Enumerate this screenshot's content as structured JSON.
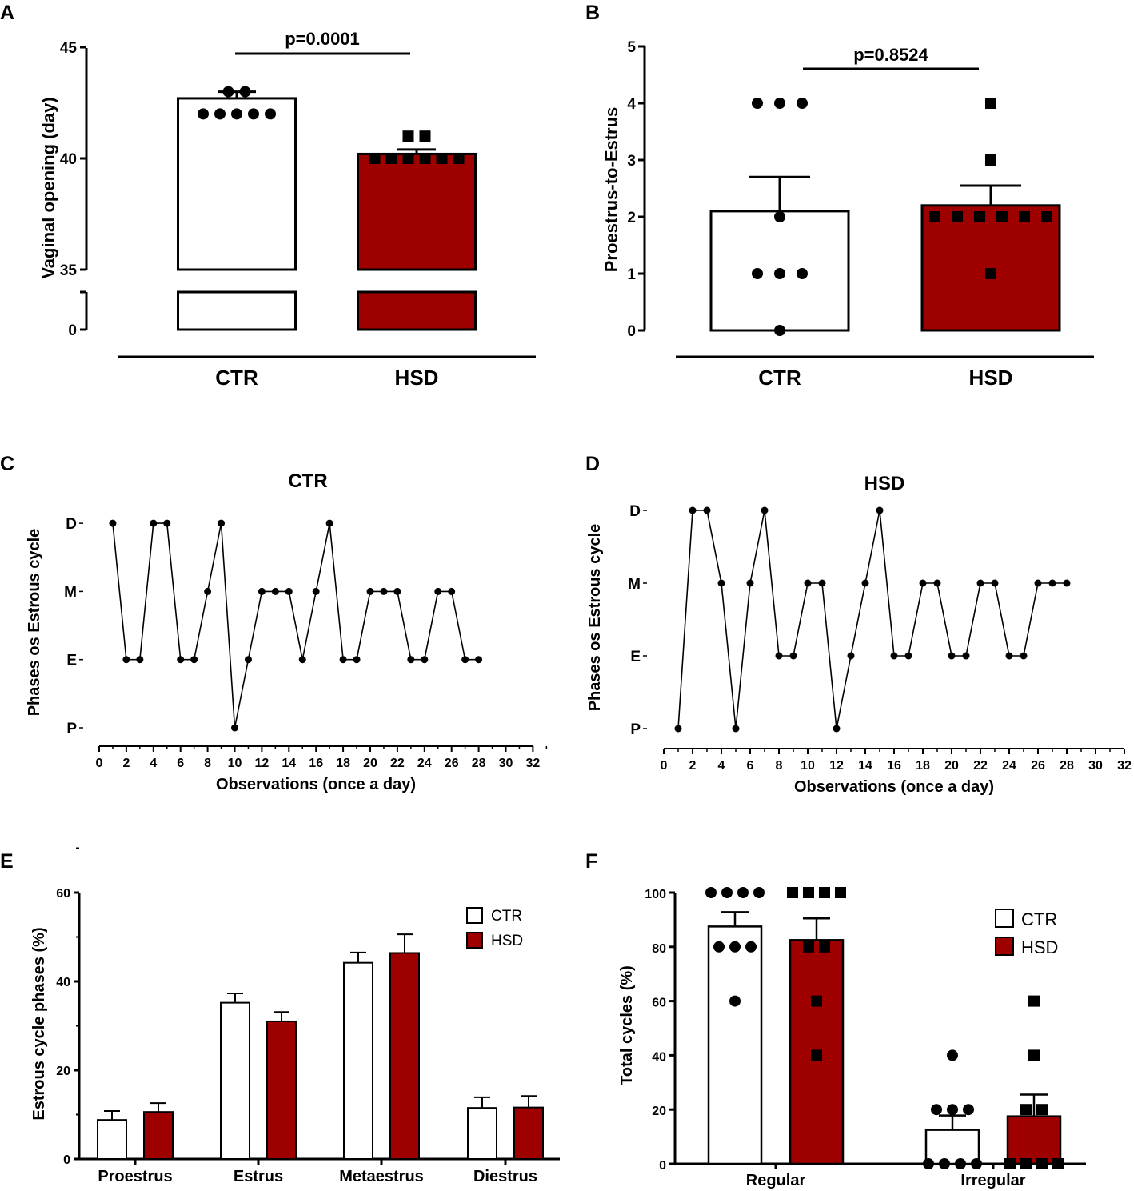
{
  "colors": {
    "ctr": "#ffffff",
    "hsd": "#9e0000",
    "ink": "#000000"
  },
  "chart_data": [
    {
      "panel": "A",
      "type": "bar",
      "ylabel": "Vaginal opening (day)",
      "categories": [
        "CTR",
        "HSD"
      ],
      "values": [
        42.7,
        40.2
      ],
      "sem": [
        0.3,
        0.2
      ],
      "points": [
        [
          43,
          43,
          42,
          42,
          42,
          42,
          42
        ],
        [
          41,
          41,
          40,
          40,
          40,
          40,
          40,
          40
        ]
      ],
      "axis_break": [
        0,
        35
      ],
      "ytick_labels": [
        "0",
        "35",
        "40",
        "45"
      ],
      "annotation": "p=0.0001"
    },
    {
      "panel": "B",
      "type": "bar",
      "ylabel": "Proestrus-to-Estrus",
      "categories": [
        "CTR",
        "HSD"
      ],
      "values": [
        2.1,
        2.2
      ],
      "sem": [
        0.6,
        0.35
      ],
      "points": [
        [
          4,
          4,
          4,
          2,
          1,
          1,
          1,
          0
        ],
        [
          4,
          3,
          2,
          2,
          2,
          2,
          2,
          2,
          1
        ]
      ],
      "ylim": [
        0,
        5
      ],
      "ytick_labels": [
        "0",
        "1",
        "2",
        "3",
        "4",
        "5"
      ],
      "annotation": "p=0.8524"
    },
    {
      "panel": "C",
      "type": "line",
      "title": "CTR",
      "xlabel": "Observations (once a day)",
      "ylabel": "Phases os Estrous cycle",
      "xlim": [
        0,
        32
      ],
      "xtick_labels": [
        "0",
        "2",
        "4",
        "6",
        "8",
        "10",
        "12",
        "14",
        "16",
        "18",
        "20",
        "22",
        "24",
        "26",
        "28",
        "30",
        "32"
      ],
      "ytick_labels": [
        "P",
        "E",
        "M",
        "D"
      ],
      "x": [
        1,
        2,
        3,
        4,
        5,
        6,
        7,
        8,
        9,
        10,
        11,
        12,
        13,
        14,
        15,
        16,
        17,
        18,
        19,
        20,
        21,
        22,
        23,
        24,
        25,
        26,
        27,
        28
      ],
      "y": [
        3,
        1,
        1,
        3,
        3,
        1,
        1,
        2,
        3,
        0,
        1,
        2,
        2,
        2,
        1,
        2,
        3,
        1,
        1,
        2,
        2,
        2,
        1,
        1,
        2,
        2,
        1,
        1
      ]
    },
    {
      "panel": "D",
      "type": "line",
      "title": "HSD",
      "xlabel": "Observations (once a day)",
      "ylabel": "Phases os Estrous cycle",
      "xlim": [
        0,
        32
      ],
      "xtick_labels": [
        "0",
        "2",
        "4",
        "6",
        "8",
        "10",
        "12",
        "14",
        "16",
        "18",
        "20",
        "22",
        "24",
        "26",
        "28",
        "30",
        "32"
      ],
      "ytick_labels": [
        "P",
        "E",
        "M",
        "D"
      ],
      "x": [
        1,
        2,
        3,
        4,
        5,
        6,
        7,
        8,
        9,
        10,
        11,
        12,
        13,
        14,
        15,
        16,
        17,
        18,
        19,
        20,
        21,
        22,
        23,
        24,
        25,
        26,
        27,
        28
      ],
      "y": [
        0,
        3,
        3,
        2,
        0,
        2,
        3,
        1,
        1,
        2,
        2,
        0,
        1,
        2,
        3,
        1,
        1,
        2,
        2,
        1,
        1,
        2,
        2,
        1,
        1,
        2,
        2,
        2
      ]
    },
    {
      "panel": "E",
      "type": "bar",
      "ylabel": "Estrous cycle phases (%)",
      "categories": [
        "Proestrus",
        "Estrus",
        "Metaestrus",
        "Diestrus"
      ],
      "series": [
        {
          "name": "CTR",
          "values": [
            8.8,
            35.2,
            44.2,
            11.5
          ],
          "sem": [
            2.0,
            2.1,
            2.3,
            2.4
          ]
        },
        {
          "name": "HSD",
          "values": [
            10.6,
            31.0,
            46.4,
            11.6
          ],
          "sem": [
            2.0,
            2.1,
            4.2,
            2.6
          ]
        }
      ],
      "ylim": [
        0,
        60
      ],
      "ytick_labels": [
        "0",
        "20",
        "40",
        "60"
      ],
      "legend": "top-right"
    },
    {
      "panel": "F",
      "type": "bar",
      "ylabel": "Total cycles (%)",
      "categories": [
        "Regular",
        "Irregular"
      ],
      "series": [
        {
          "name": "CTR",
          "values": [
            87.5,
            12.5
          ],
          "sem": [
            5.3,
            5.3
          ],
          "points": [
            [
              100,
              100,
              100,
              100,
              80,
              80,
              80,
              60
            ],
            [
              40,
              20,
              20,
              20,
              0,
              0,
              0,
              0
            ]
          ]
        },
        {
          "name": "HSD",
          "values": [
            82.5,
            17.5
          ],
          "sem": [
            8.0,
            8.0
          ],
          "points": [
            [
              100,
              100,
              100,
              100,
              80,
              80,
              60,
              40
            ],
            [
              60,
              40,
              20,
              20,
              0,
              0,
              0,
              0
            ]
          ]
        }
      ],
      "ylim": [
        0,
        100
      ],
      "ytick_labels": [
        "0",
        "20",
        "40",
        "60",
        "80",
        "100"
      ],
      "legend": "top-right"
    }
  ]
}
